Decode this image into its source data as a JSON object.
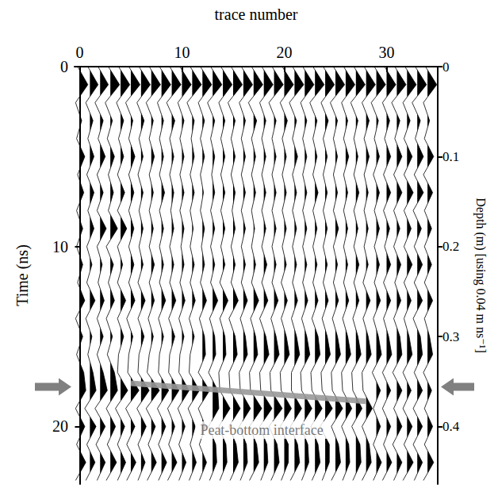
{
  "chart_data": {
    "type": "wiggle",
    "x_label": "trace number",
    "y_label": "Time (ns)",
    "y2_label": "Depth (m) [using 0.04 m ns⁻¹]",
    "xlim": [
      -0.5,
      35
    ],
    "xticks": [
      0,
      10,
      20,
      30
    ],
    "ylim": [
      0,
      23.2
    ],
    "yticks": [
      0,
      10,
      20
    ],
    "y2lim": [
      0,
      0.464
    ],
    "y2ticks": [
      0,
      0.1,
      0.2,
      0.3,
      0.4
    ],
    "grid": false,
    "color": "#000000",
    "x": [
      0,
      1,
      2,
      3,
      4,
      5,
      6,
      7,
      8,
      9,
      10,
      11,
      12,
      13,
      14,
      15,
      16,
      17,
      18,
      19,
      20,
      21,
      22,
      23,
      24,
      25,
      26,
      27,
      28,
      29,
      30,
      31,
      32,
      33,
      34
    ],
    "y": [
      0,
      1,
      2,
      3,
      4,
      5,
      6,
      7,
      8,
      9,
      10,
      11,
      12,
      13,
      14,
      15,
      16,
      17,
      18,
      19,
      20,
      21,
      22,
      23
    ],
    "amplitudes": [
      [
        -0.2,
        0.8,
        -0.4,
        0.2,
        -0.3,
        0.5,
        -0.2,
        0.4,
        -0.3,
        0.3,
        -0.3,
        0.3,
        -0.2,
        0.5,
        -0.4,
        0.3,
        -0.3,
        0.4,
        0.6,
        -0.4,
        0.5,
        -0.3,
        0.6,
        -0.4
      ],
      [
        -0.2,
        0.8,
        -0.4,
        0.3,
        -0.2,
        0.4,
        -0.3,
        0.4,
        -0.2,
        0.4,
        -0.3,
        0.2,
        -0.3,
        0.5,
        -0.4,
        0.2,
        -0.2,
        0.3,
        0.6,
        -0.5,
        0.6,
        -0.3,
        0.5,
        -0.4
      ],
      [
        -0.2,
        0.8,
        -0.5,
        0.3,
        -0.2,
        0.5,
        -0.3,
        0.3,
        -0.3,
        0.6,
        -0.3,
        0.2,
        -0.2,
        0.4,
        -0.3,
        0.3,
        -0.3,
        0.3,
        0.7,
        -0.5,
        0.5,
        -0.4,
        0.5,
        -0.3
      ],
      [
        -0.2,
        0.9,
        -0.5,
        0.2,
        -0.3,
        0.4,
        -0.2,
        0.3,
        -0.2,
        0.7,
        -0.4,
        0.3,
        -0.2,
        0.4,
        -0.4,
        0.2,
        -0.3,
        0.4,
        0.7,
        -0.4,
        0.5,
        -0.3,
        0.6,
        -0.4
      ],
      [
        -0.2,
        0.9,
        -0.4,
        0.3,
        -0.2,
        0.3,
        -0.3,
        0.4,
        -0.3,
        0.6,
        -0.3,
        0.2,
        -0.3,
        0.5,
        -0.3,
        0.3,
        -0.2,
        -0.3,
        0.7,
        -0.5,
        0.4,
        -0.3,
        0.5,
        -0.3
      ],
      [
        -0.2,
        0.9,
        -0.5,
        0.2,
        -0.2,
        0.4,
        -0.2,
        0.3,
        -0.2,
        0.3,
        -0.2,
        0.3,
        -0.2,
        0.4,
        -0.4,
        0.2,
        -0.2,
        -0.3,
        0.8,
        -0.5,
        0.4,
        -0.4,
        0.5,
        -0.4
      ],
      [
        -0.2,
        0.9,
        -0.4,
        0.3,
        -0.2,
        0.2,
        -0.3,
        0.2,
        -0.2,
        0.2,
        -0.2,
        0.2,
        -0.3,
        0.4,
        -0.3,
        0.3,
        -0.2,
        -0.3,
        0.8,
        -0.4,
        0.5,
        -0.3,
        0.4,
        -0.3
      ],
      [
        -0.2,
        0.9,
        -0.5,
        0.2,
        -0.2,
        0.3,
        -0.2,
        0.2,
        -0.2,
        0.2,
        -0.2,
        0.3,
        -0.2,
        0.3,
        -0.3,
        0.2,
        -0.2,
        -0.4,
        0.8,
        -0.5,
        0.4,
        -0.3,
        0.5,
        -0.4
      ],
      [
        -0.2,
        0.9,
        -0.4,
        0.2,
        -0.2,
        0.2,
        -0.2,
        0.3,
        -0.2,
        0.2,
        -0.2,
        0.2,
        -0.2,
        0.4,
        -0.3,
        0.2,
        -0.2,
        -0.3,
        0.7,
        -0.4,
        0.4,
        -0.3,
        0.5,
        -0.3
      ],
      [
        -0.2,
        0.9,
        -0.5,
        0.3,
        -0.2,
        0.2,
        -0.2,
        0.2,
        -0.1,
        0.2,
        -0.2,
        0.2,
        -0.2,
        0.4,
        -0.3,
        0.3,
        -0.2,
        -0.3,
        0.7,
        -0.4,
        0.3,
        -0.3,
        0.5,
        -0.4
      ],
      [
        -0.2,
        0.9,
        -0.4,
        0.2,
        -0.2,
        0.2,
        -0.2,
        0.2,
        -0.2,
        0.2,
        -0.1,
        0.2,
        -0.2,
        0.3,
        -0.3,
        0.2,
        -0.2,
        -0.3,
        0.7,
        -0.4,
        0.3,
        -0.3,
        0.4,
        -0.3
      ],
      [
        -0.2,
        0.9,
        -0.5,
        0.2,
        -0.1,
        0.2,
        -0.2,
        0.2,
        -0.2,
        0.1,
        -0.2,
        0.2,
        -0.2,
        0.3,
        -0.3,
        0.2,
        -0.2,
        -0.3,
        0.7,
        -0.4,
        0.3,
        -0.2,
        0.4,
        -0.3
      ],
      [
        -0.2,
        0.9,
        -0.4,
        0.2,
        -0.2,
        0.2,
        -0.2,
        0.1,
        -0.2,
        0.2,
        -0.1,
        0.2,
        -0.2,
        0.4,
        -0.3,
        0.2,
        0.3,
        -0.4,
        0.7,
        -0.4,
        0.3,
        -0.3,
        0.4,
        -0.3
      ],
      [
        -0.2,
        0.9,
        -0.5,
        0.2,
        -0.2,
        0.2,
        -0.1,
        0.2,
        -0.2,
        0.2,
        -0.2,
        0.2,
        -0.2,
        0.5,
        -0.3,
        0.2,
        0.3,
        -0.4,
        0.5,
        0.6,
        -0.4,
        0.3,
        0.4,
        -0.3
      ],
      [
        -0.2,
        0.9,
        -0.4,
        0.2,
        -0.2,
        0.2,
        -0.2,
        0.2,
        -0.2,
        0.2,
        -0.2,
        0.2,
        -0.3,
        0.5,
        -0.3,
        0.2,
        0.3,
        -0.4,
        -0.3,
        0.7,
        -0.4,
        0.3,
        0.4,
        -0.3
      ],
      [
        -0.2,
        0.9,
        -0.5,
        0.2,
        -0.2,
        0.2,
        -0.2,
        0.2,
        -0.1,
        0.2,
        -0.2,
        0.2,
        -0.2,
        0.5,
        -0.4,
        0.2,
        0.4,
        -0.4,
        -0.3,
        0.7,
        -0.4,
        0.3,
        0.5,
        -0.3
      ],
      [
        -0.2,
        0.9,
        -0.4,
        0.2,
        -0.2,
        0.2,
        -0.2,
        0.2,
        -0.2,
        0.2,
        -0.2,
        0.2,
        -0.2,
        0.4,
        -0.3,
        0.2,
        0.4,
        -0.4,
        -0.3,
        0.7,
        -0.4,
        0.3,
        0.4,
        -0.3
      ],
      [
        -0.2,
        0.9,
        -0.5,
        0.3,
        -0.2,
        0.2,
        -0.2,
        0.2,
        -0.2,
        0.1,
        -0.2,
        0.2,
        -0.2,
        0.5,
        -0.3,
        0.2,
        0.4,
        -0.4,
        -0.3,
        0.8,
        -0.4,
        0.3,
        0.5,
        -0.4
      ],
      [
        -0.2,
        0.9,
        -0.4,
        0.2,
        -0.2,
        0.2,
        -0.2,
        0.2,
        -0.2,
        0.2,
        -0.2,
        0.3,
        -0.2,
        0.4,
        -0.4,
        0.2,
        0.5,
        -0.4,
        -0.3,
        0.8,
        -0.4,
        0.3,
        0.4,
        -0.3
      ],
      [
        -0.2,
        0.9,
        -0.5,
        0.2,
        -0.2,
        0.2,
        -0.2,
        0.2,
        -0.2,
        0.2,
        -0.2,
        0.2,
        -0.2,
        0.4,
        -0.3,
        0.2,
        0.5,
        -0.4,
        -0.3,
        0.8,
        -0.5,
        0.3,
        0.5,
        -0.3
      ],
      [
        -0.2,
        0.9,
        -0.4,
        0.3,
        -0.2,
        0.2,
        -0.2,
        0.2,
        -0.2,
        0.2,
        -0.2,
        0.2,
        -0.3,
        0.3,
        -0.3,
        0.2,
        0.5,
        -0.4,
        -0.3,
        0.7,
        -0.4,
        0.4,
        0.4,
        -0.3
      ],
      [
        -0.2,
        0.9,
        -0.5,
        0.2,
        -0.2,
        0.3,
        -0.2,
        0.2,
        -0.2,
        0.2,
        -0.2,
        0.2,
        -0.2,
        0.3,
        -0.3,
        0.2,
        0.5,
        -0.3,
        -0.3,
        0.7,
        -0.4,
        0.3,
        0.5,
        -0.4
      ],
      [
        -0.2,
        0.9,
        -0.4,
        0.2,
        -0.2,
        0.2,
        -0.2,
        0.2,
        -0.2,
        0.2,
        -0.2,
        0.2,
        -0.2,
        0.3,
        -0.3,
        0.2,
        0.5,
        -0.4,
        -0.3,
        0.7,
        -0.4,
        0.3,
        0.4,
        -0.3
      ],
      [
        -0.2,
        0.9,
        -0.5,
        0.2,
        -0.2,
        0.2,
        -0.2,
        0.3,
        -0.2,
        0.2,
        -0.2,
        0.2,
        -0.2,
        0.3,
        -0.3,
        0.3,
        0.5,
        -0.4,
        -0.3,
        0.7,
        -0.4,
        0.3,
        0.5,
        -0.3
      ],
      [
        -0.2,
        0.9,
        -0.4,
        0.3,
        -0.2,
        0.2,
        -0.2,
        0.2,
        -0.2,
        0.2,
        -0.2,
        0.2,
        -0.2,
        0.3,
        -0.3,
        0.2,
        0.5,
        -0.4,
        -0.3,
        0.7,
        -0.5,
        0.4,
        0.4,
        -0.3
      ],
      [
        -0.2,
        0.9,
        -0.5,
        0.2,
        -0.2,
        0.2,
        -0.2,
        0.2,
        -0.2,
        0.3,
        -0.2,
        0.2,
        -0.2,
        0.3,
        -0.3,
        0.2,
        0.5,
        -0.4,
        -0.3,
        0.7,
        -0.4,
        0.3,
        0.5,
        -0.4
      ],
      [
        -0.2,
        0.9,
        -0.4,
        0.2,
        -0.2,
        0.3,
        -0.2,
        0.2,
        -0.2,
        0.2,
        -0.2,
        0.2,
        -0.2,
        0.3,
        -0.3,
        0.2,
        0.5,
        -0.4,
        -0.3,
        0.6,
        -0.4,
        0.3,
        0.4,
        -0.3
      ],
      [
        -0.2,
        0.9,
        -0.5,
        0.2,
        -0.2,
        0.2,
        -0.2,
        0.3,
        -0.2,
        0.2,
        -0.2,
        0.3,
        -0.2,
        0.3,
        -0.3,
        0.2,
        0.5,
        -0.4,
        -0.3,
        0.6,
        -0.4,
        0.4,
        0.5,
        -0.3
      ],
      [
        -0.2,
        0.9,
        -0.4,
        0.3,
        -0.2,
        0.3,
        -0.2,
        0.2,
        -0.2,
        0.2,
        -0.2,
        0.2,
        -0.3,
        0.4,
        -0.3,
        0.2,
        0.5,
        -0.4,
        -0.3,
        0.6,
        -0.4,
        0.3,
        0.5,
        -0.4
      ],
      [
        -0.2,
        0.9,
        -0.5,
        0.2,
        -0.2,
        0.3,
        -0.3,
        0.3,
        -0.2,
        0.3,
        -0.2,
        0.3,
        -0.2,
        0.4,
        -0.3,
        0.2,
        0.5,
        -0.4,
        0.4,
        -0.3,
        0.4,
        -0.3,
        0.5,
        -0.3
      ],
      [
        -0.2,
        0.9,
        -0.4,
        0.3,
        -0.2,
        0.4,
        -0.3,
        0.4,
        -0.3,
        0.3,
        -0.2,
        0.4,
        -0.3,
        0.4,
        -0.3,
        0.2,
        0.5,
        -0.4,
        0.4,
        -0.4,
        0.4,
        -0.3,
        0.5,
        -0.4
      ],
      [
        -0.2,
        0.9,
        -0.5,
        0.3,
        -0.2,
        0.5,
        -0.3,
        0.5,
        -0.3,
        0.3,
        -0.3,
        0.4,
        -0.2,
        0.4,
        -0.3,
        0.3,
        0.5,
        -0.4,
        0.5,
        -0.3,
        0.5,
        -0.4,
        0.5,
        -0.3
      ],
      [
        -0.2,
        0.9,
        -0.4,
        0.3,
        -0.3,
        0.5,
        -0.3,
        0.6,
        -0.3,
        0.4,
        -0.3,
        0.5,
        -0.3,
        0.4,
        -0.3,
        0.2,
        0.5,
        -0.4,
        0.4,
        -0.4,
        0.5,
        -0.3,
        0.6,
        -0.4
      ],
      [
        -0.2,
        0.9,
        -0.5,
        0.3,
        -0.2,
        0.6,
        -0.3,
        0.6,
        -0.4,
        0.4,
        -0.3,
        0.5,
        -0.3,
        0.5,
        -0.4,
        0.3,
        0.5,
        -0.3,
        0.5,
        -0.4,
        0.5,
        -0.4,
        0.5,
        -0.3
      ],
      [
        -0.2,
        0.9,
        -0.4,
        0.2,
        -0.3,
        0.6,
        -0.4,
        0.5,
        -0.3,
        0.4,
        -0.3,
        0.4,
        -0.3,
        0.5,
        -0.3,
        0.2,
        0.5,
        -0.4,
        0.4,
        -0.3,
        0.5,
        -0.3,
        0.6,
        -0.4
      ]
    ],
    "horizon": {
      "x": [
        5,
        28
      ],
      "y": [
        17.6,
        18.6
      ],
      "color": "#999999"
    },
    "arrows": {
      "y": 17.8,
      "color": "#808080"
    },
    "annotations": [
      {
        "text": "Peat-bottom interface",
        "x": 17.8,
        "y": 20.2
      }
    ]
  }
}
